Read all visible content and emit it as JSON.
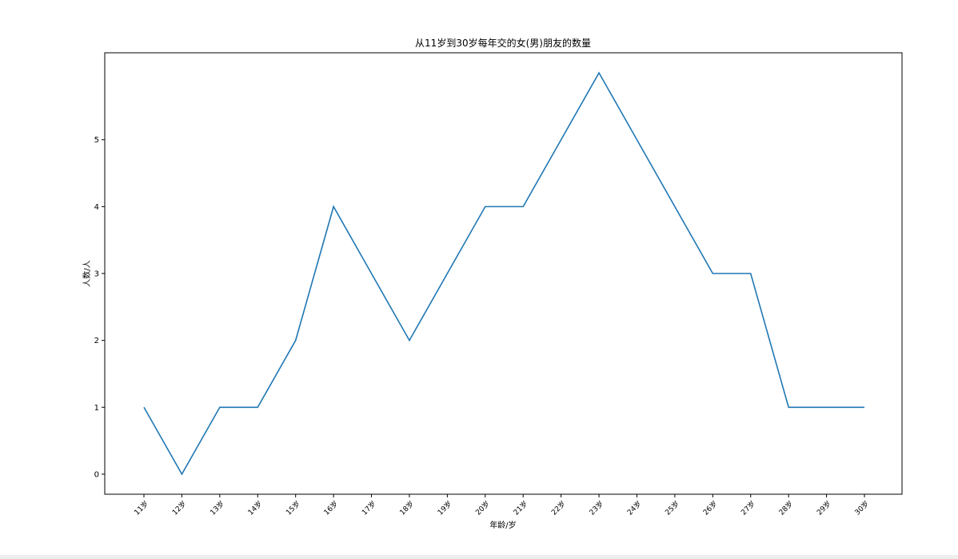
{
  "chart_data": {
    "type": "line",
    "title": "从11岁到30岁每年交的女(男)朋友的数量",
    "xlabel": "年龄/岁",
    "ylabel": "人数/人",
    "categories": [
      "11岁",
      "12岁",
      "13岁",
      "14岁",
      "15岁",
      "16岁",
      "17岁",
      "18岁",
      "19岁",
      "20岁",
      "21岁",
      "22岁",
      "23岁",
      "24岁",
      "25岁",
      "26岁",
      "27岁",
      "28岁",
      "29岁",
      "30岁"
    ],
    "series": [
      {
        "values": [
          1,
          0,
          1,
          1,
          2,
          4,
          3,
          2,
          3,
          4,
          4,
          5,
          6,
          5,
          4,
          3,
          3,
          1,
          1,
          1
        ]
      }
    ],
    "yticks": [
      0,
      1,
      2,
      3,
      4,
      5
    ],
    "ylim": [
      -0.3,
      6.3
    ],
    "grid": false,
    "line_color": "#1f77b4"
  }
}
